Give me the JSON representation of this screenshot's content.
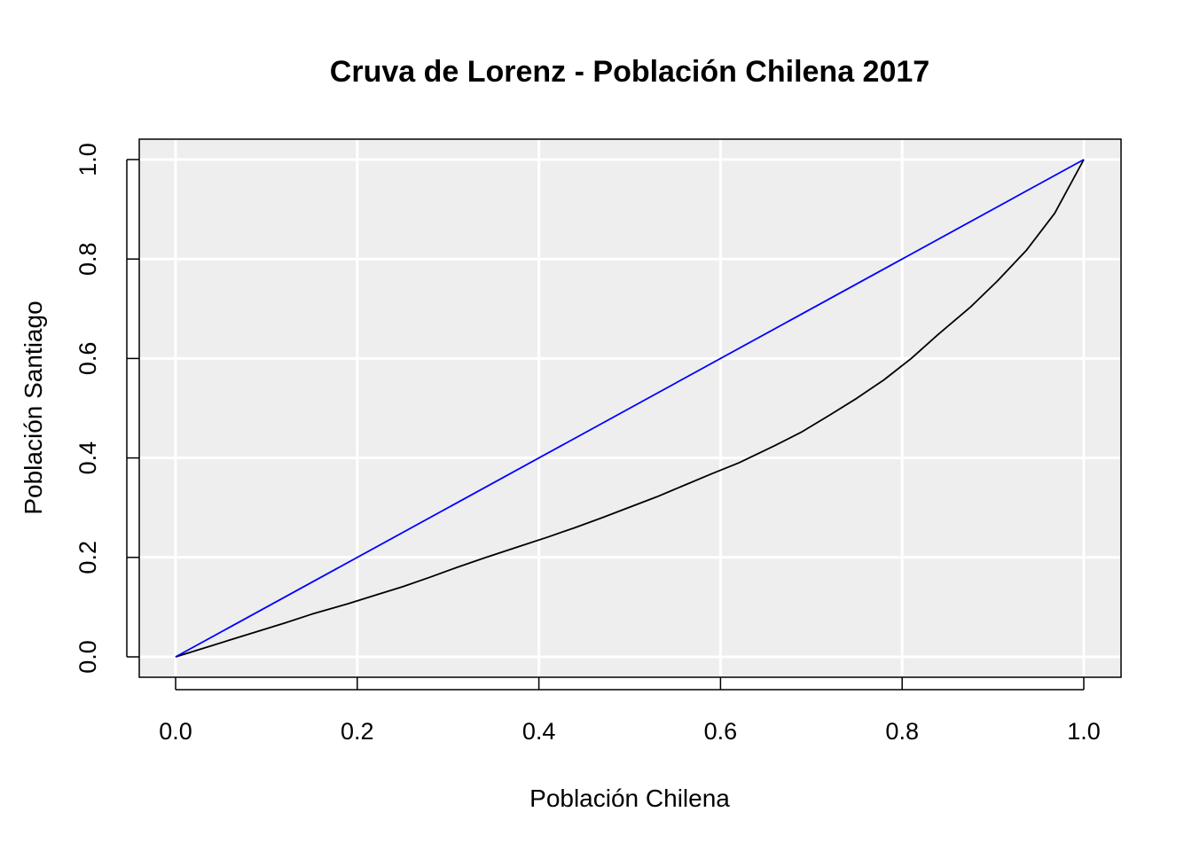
{
  "chart_data": {
    "type": "line",
    "title": "Cruva de Lorenz - Población Chilena 2017",
    "xlabel": "Población Chilena",
    "ylabel": "Población Santiago",
    "xlim": [
      0,
      1
    ],
    "ylim": [
      0,
      1
    ],
    "xticks": [
      "0.0",
      "0.2",
      "0.4",
      "0.6",
      "0.8",
      "1.0"
    ],
    "yticks": [
      "0.0",
      "0.2",
      "0.4",
      "0.6",
      "0.8",
      "1.0"
    ],
    "grid": true,
    "background": "#eeeeee",
    "series": [
      {
        "color": "#000000",
        "x": [
          0,
          0.03,
          0.06,
          0.09,
          0.12,
          0.15,
          0.19,
          0.22,
          0.25,
          0.28,
          0.31,
          0.34,
          0.38,
          0.41,
          0.44,
          0.47,
          0.5,
          0.53,
          0.56,
          0.59,
          0.62,
          0.66,
          0.69,
          0.72,
          0.75,
          0.78,
          0.81,
          0.84,
          0.875,
          0.905,
          0.937,
          0.968,
          1.0
        ],
        "y": [
          0,
          0.017,
          0.034,
          0.051,
          0.068,
          0.086,
          0.107,
          0.124,
          0.141,
          0.16,
          0.18,
          0.199,
          0.223,
          0.241,
          0.26,
          0.28,
          0.301,
          0.322,
          0.345,
          0.368,
          0.39,
          0.425,
          0.453,
          0.486,
          0.52,
          0.557,
          0.6,
          0.649,
          0.703,
          0.756,
          0.818,
          0.892,
          1.0
        ]
      },
      {
        "color": "#0000ff",
        "x": [
          0,
          1
        ],
        "y": [
          0,
          1
        ]
      }
    ]
  }
}
